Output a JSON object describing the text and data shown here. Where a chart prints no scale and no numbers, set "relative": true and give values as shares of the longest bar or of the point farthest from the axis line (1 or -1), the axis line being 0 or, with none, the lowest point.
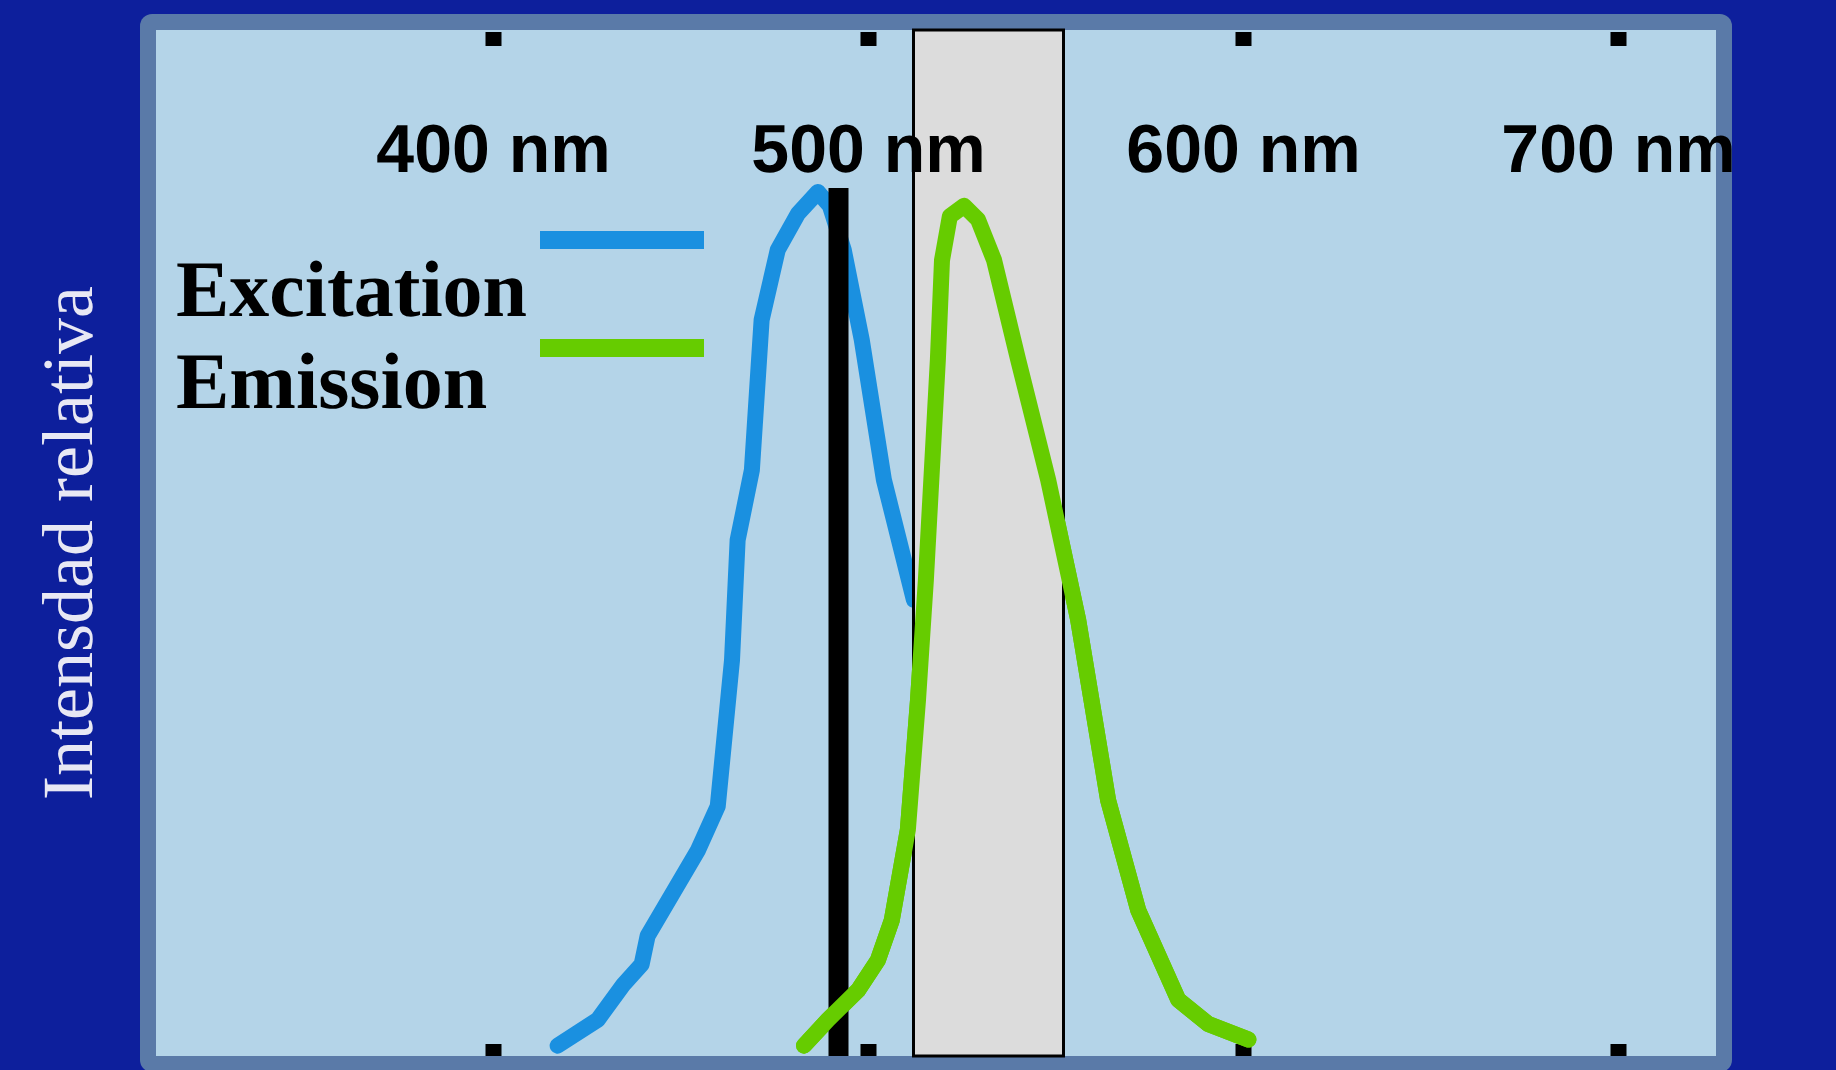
{
  "chart_data": {
    "type": "line",
    "ylabel": "Intensdad relativa",
    "relative": true,
    "xlim": [
      310,
      726
    ],
    "xticks": [
      {
        "value": 400,
        "label": "400 nm"
      },
      {
        "value": 500,
        "label": "500 nm"
      },
      {
        "value": 600,
        "label": "600 nm"
      },
      {
        "value": 700,
        "label": "700 nm"
      }
    ],
    "legend": "top left",
    "grid": false,
    "marker": "none",
    "line_style": "solid",
    "ref_lines": [
      {
        "axis": "x",
        "value": 492,
        "color": "#000000"
      }
    ],
    "bands": [
      {
        "axis": "x",
        "from": 512,
        "to": 552,
        "color": "#dcdcdc"
      }
    ],
    "series": [
      {
        "name": "Excitation",
        "color": "#1a90e0",
        "x": [
          417.1,
          427.8,
          434.7,
          439.5,
          441.1,
          454.5,
          459.8,
          463.6,
          465.1,
          468.9,
          471.5,
          475.8,
          481.2,
          486.5,
          489.7,
          493.4,
          498.2,
          504.1,
          512.1
        ],
        "values": [
          0.012,
          0.042,
          0.083,
          0.106,
          0.139,
          0.238,
          0.289,
          0.458,
          0.597,
          0.678,
          0.852,
          0.933,
          0.975,
          1.0,
          0.984,
          0.933,
          0.829,
          0.667,
          0.528
        ]
      },
      {
        "name": "Emission",
        "color": "#66cc00",
        "x": [
          482.8,
          489.2,
          497.2,
          502.5,
          506.2,
          510.5,
          513.2,
          515.3,
          518.5,
          519.6,
          521.7,
          525.5,
          529.2,
          533.5,
          539.9,
          547.9,
          555.9,
          563.9,
          571.9,
          582.6,
          590.6,
          601.3
        ],
        "values": [
          0.012,
          0.042,
          0.076,
          0.111,
          0.157,
          0.262,
          0.412,
          0.551,
          0.806,
          0.921,
          0.972,
          0.984,
          0.968,
          0.921,
          0.806,
          0.667,
          0.505,
          0.296,
          0.169,
          0.065,
          0.037,
          0.019
        ]
      }
    ]
  }
}
